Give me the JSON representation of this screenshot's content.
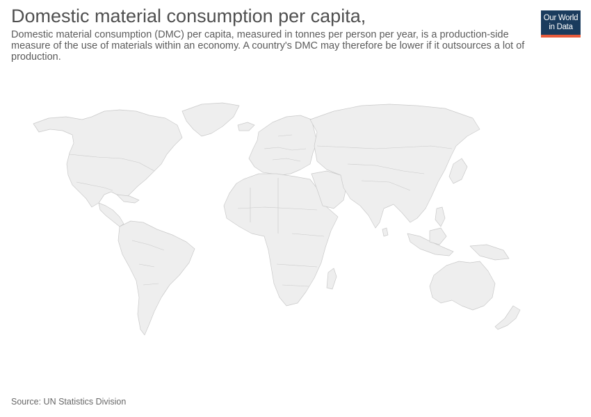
{
  "header": {
    "title": "Domestic material consumption per capita,",
    "subtitle": "Domestic material consumption (DMC) per capita, measured in tonnes per person per year, is a production-side measure of the use of materials within an economy. A country's DMC may therefore be lower if it outsources a lot of production."
  },
  "logo": {
    "line1": "Our World",
    "line2": "in Data",
    "background_color": "#1a3b5d",
    "accent_color": "#e85b3c"
  },
  "map": {
    "land_color": "#eeeeee",
    "border_color": "#c9c9c9"
  },
  "footer": {
    "source": "Source: UN Statistics Division"
  }
}
